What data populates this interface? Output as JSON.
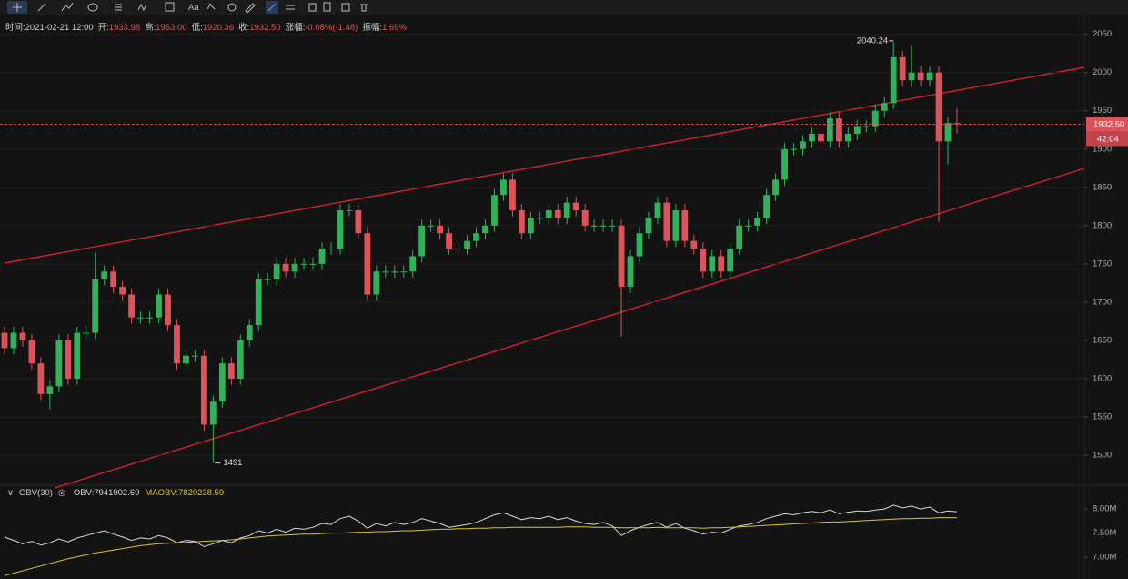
{
  "header": {
    "info": [
      {
        "label": "时间:",
        "value": "2021-02-21 12:00"
      },
      {
        "label": "开:",
        "value": "1933.98"
      },
      {
        "label": "高:",
        "value": "1953.00"
      },
      {
        "label": "低:",
        "value": "1920.36"
      },
      {
        "label": "收:",
        "value": "1932.50"
      },
      {
        "label": "涨幅:",
        "value": "-0.08%(-1.48)"
      },
      {
        "label": "振幅:",
        "value": "1.69%"
      }
    ]
  },
  "chart_data": {
    "type": "candlestick",
    "up_color": "#2fb35a",
    "down_color": "#e0525a",
    "ylim": [
      1462,
      2071
    ],
    "yticks": [
      1500,
      1550,
      1600,
      1650,
      1700,
      1750,
      1800,
      1850,
      1900,
      1950,
      2000,
      2050
    ],
    "grid": true,
    "open": [
      1660,
      1640,
      1660,
      1650,
      1620,
      1580,
      1590,
      1650,
      1600,
      1660,
      1660,
      1730,
      1740,
      1720,
      1710,
      1680,
      1680,
      1680,
      1710,
      1670,
      1620,
      1630,
      1630,
      1540,
      1570,
      1620,
      1600,
      1650,
      1670,
      1730,
      1730,
      1750,
      1740,
      1750,
      1750,
      1750,
      1770,
      1770,
      1820,
      1820,
      1790,
      1710,
      1740,
      1740,
      1740,
      1740,
      1760,
      1800,
      1800,
      1790,
      1770,
      1770,
      1780,
      1790,
      1800,
      1840,
      1860,
      1820,
      1790,
      1810,
      1810,
      1820,
      1810,
      1830,
      1820,
      1800,
      1800,
      1800,
      1800,
      1720,
      1760,
      1790,
      1810,
      1830,
      1780,
      1820,
      1780,
      1770,
      1740,
      1760,
      1740,
      1770,
      1800,
      1800,
      1810,
      1840,
      1860,
      1900,
      1900,
      1910,
      1920,
      1910,
      1940,
      1910,
      1920,
      1930,
      1930,
      1950,
      1960,
      2020,
      1990,
      2000,
      1990,
      2000,
      1910,
      1933.98
    ],
    "high": [
      1668,
      1668,
      1668,
      1658,
      1628,
      1598,
      1658,
      1658,
      1668,
      1668,
      1765,
      1748,
      1748,
      1728,
      1718,
      1688,
      1688,
      1718,
      1718,
      1678,
      1638,
      1638,
      1638,
      1578,
      1628,
      1628,
      1658,
      1678,
      1738,
      1738,
      1758,
      1758,
      1758,
      1758,
      1758,
      1778,
      1778,
      1828,
      1828,
      1828,
      1798,
      1748,
      1748,
      1748,
      1748,
      1768,
      1808,
      1808,
      1808,
      1798,
      1778,
      1788,
      1798,
      1808,
      1848,
      1868,
      1868,
      1828,
      1818,
      1818,
      1828,
      1828,
      1838,
      1838,
      1828,
      1808,
      1808,
      1808,
      1808,
      1768,
      1798,
      1818,
      1838,
      1838,
      1828,
      1828,
      1788,
      1778,
      1768,
      1768,
      1778,
      1808,
      1808,
      1818,
      1848,
      1868,
      1908,
      1908,
      1918,
      1928,
      1928,
      1948,
      1948,
      1928,
      1938,
      1938,
      1958,
      1968,
      2040.24,
      2028,
      2035,
      2008,
      2008,
      2008,
      1942,
      1953
    ],
    "low": [
      1632,
      1632,
      1642,
      1612,
      1572,
      1560,
      1582,
      1592,
      1592,
      1652,
      1652,
      1722,
      1712,
      1702,
      1672,
      1672,
      1672,
      1672,
      1662,
      1612,
      1612,
      1622,
      1532,
      1491,
      1562,
      1592,
      1592,
      1642,
      1662,
      1722,
      1722,
      1732,
      1732,
      1742,
      1742,
      1742,
      1762,
      1762,
      1812,
      1782,
      1702,
      1702,
      1732,
      1732,
      1732,
      1732,
      1752,
      1792,
      1782,
      1762,
      1762,
      1762,
      1772,
      1782,
      1792,
      1832,
      1812,
      1782,
      1782,
      1802,
      1802,
      1802,
      1802,
      1812,
      1792,
      1792,
      1792,
      1792,
      1655,
      1712,
      1752,
      1782,
      1802,
      1772,
      1772,
      1772,
      1762,
      1732,
      1732,
      1732,
      1732,
      1762,
      1792,
      1792,
      1802,
      1832,
      1852,
      1892,
      1892,
      1902,
      1902,
      1902,
      1902,
      1902,
      1912,
      1922,
      1922,
      1942,
      1952,
      1982,
      1982,
      1982,
      1982,
      1805,
      1880,
      1920.36
    ],
    "close": [
      1640,
      1660,
      1650,
      1620,
      1580,
      1590,
      1650,
      1600,
      1660,
      1660,
      1730,
      1740,
      1720,
      1710,
      1680,
      1680,
      1680,
      1710,
      1670,
      1620,
      1630,
      1630,
      1540,
      1570,
      1620,
      1600,
      1650,
      1670,
      1730,
      1730,
      1750,
      1740,
      1750,
      1750,
      1750,
      1770,
      1770,
      1820,
      1820,
      1790,
      1710,
      1740,
      1740,
      1740,
      1740,
      1760,
      1800,
      1800,
      1790,
      1770,
      1770,
      1780,
      1790,
      1800,
      1840,
      1860,
      1820,
      1790,
      1810,
      1810,
      1820,
      1810,
      1830,
      1820,
      1800,
      1800,
      1800,
      1800,
      1720,
      1760,
      1790,
      1810,
      1830,
      1780,
      1820,
      1780,
      1770,
      1740,
      1760,
      1740,
      1770,
      1800,
      1800,
      1810,
      1840,
      1860,
      1900,
      1900,
      1910,
      1920,
      1910,
      1940,
      1910,
      1920,
      1930,
      1930,
      1950,
      1960,
      2020,
      1990,
      2000,
      1990,
      2000,
      1910,
      1933.98,
      1932.5
    ],
    "current_price": {
      "value": 1932.5,
      "label": "1932.50"
    },
    "countdown": "42:04",
    "max_label": "2040.24",
    "min_label": "1491"
  },
  "indicator": {
    "type": "line",
    "title": "OBV(30)",
    "ylim": [
      6.55,
      8.36
    ],
    "yticks": [
      {
        "value": 7,
        "label": "7.00M"
      },
      {
        "value": 7.5,
        "label": "7.50M"
      },
      {
        "value": 8,
        "label": "8.00M"
      }
    ],
    "series": [
      {
        "name": "OBV",
        "label": "OBV:7941902.69",
        "color": "#d8d8d8",
        "values": [
          7.42,
          7.35,
          7.28,
          7.33,
          7.25,
          7.3,
          7.38,
          7.32,
          7.4,
          7.45,
          7.5,
          7.55,
          7.48,
          7.42,
          7.35,
          7.4,
          7.38,
          7.45,
          7.4,
          7.3,
          7.35,
          7.33,
          7.22,
          7.28,
          7.35,
          7.3,
          7.4,
          7.45,
          7.55,
          7.5,
          7.58,
          7.52,
          7.6,
          7.58,
          7.62,
          7.7,
          7.68,
          7.8,
          7.85,
          7.75,
          7.6,
          7.7,
          7.65,
          7.72,
          7.68,
          7.72,
          7.8,
          7.75,
          7.7,
          7.62,
          7.65,
          7.68,
          7.72,
          7.8,
          7.88,
          7.92,
          7.85,
          7.78,
          7.82,
          7.8,
          7.85,
          7.78,
          7.82,
          7.75,
          7.7,
          7.68,
          7.72,
          7.65,
          7.45,
          7.55,
          7.62,
          7.68,
          7.72,
          7.62,
          7.7,
          7.6,
          7.55,
          7.48,
          7.52,
          7.5,
          7.58,
          7.65,
          7.68,
          7.72,
          7.8,
          7.85,
          7.9,
          7.88,
          7.92,
          7.95,
          7.92,
          7.98,
          7.9,
          7.93,
          7.96,
          7.95,
          7.98,
          8.0,
          8.08,
          8.02,
          8.06,
          8.0,
          8.04,
          7.92,
          7.96,
          7.94
        ]
      },
      {
        "name": "MAOBV",
        "label": "MAOBV:7820238.59",
        "color": "#d9c23a",
        "values": [
          6.62,
          6.67,
          6.72,
          6.77,
          6.82,
          6.87,
          6.92,
          6.97,
          7.01,
          7.05,
          7.09,
          7.12,
          7.15,
          7.18,
          7.21,
          7.24,
          7.26,
          7.28,
          7.29,
          7.3,
          7.31,
          7.32,
          7.33,
          7.34,
          7.35,
          7.36,
          7.38,
          7.4,
          7.42,
          7.44,
          7.45,
          7.46,
          7.47,
          7.48,
          7.48,
          7.49,
          7.5,
          7.5,
          7.51,
          7.52,
          7.52,
          7.53,
          7.53,
          7.54,
          7.55,
          7.55,
          7.56,
          7.57,
          7.58,
          7.58,
          7.59,
          7.59,
          7.6,
          7.6,
          7.61,
          7.61,
          7.62,
          7.62,
          7.62,
          7.62,
          7.62,
          7.62,
          7.63,
          7.63,
          7.63,
          7.62,
          7.62,
          7.62,
          7.61,
          7.61,
          7.61,
          7.61,
          7.62,
          7.61,
          7.61,
          7.61,
          7.61,
          7.6,
          7.61,
          7.61,
          7.62,
          7.63,
          7.64,
          7.65,
          7.66,
          7.67,
          7.68,
          7.69,
          7.7,
          7.71,
          7.72,
          7.73,
          7.73,
          7.74,
          7.75,
          7.76,
          7.77,
          7.78,
          7.79,
          7.8,
          7.8,
          7.81,
          7.81,
          7.82,
          7.82,
          7.82
        ]
      }
    ]
  }
}
